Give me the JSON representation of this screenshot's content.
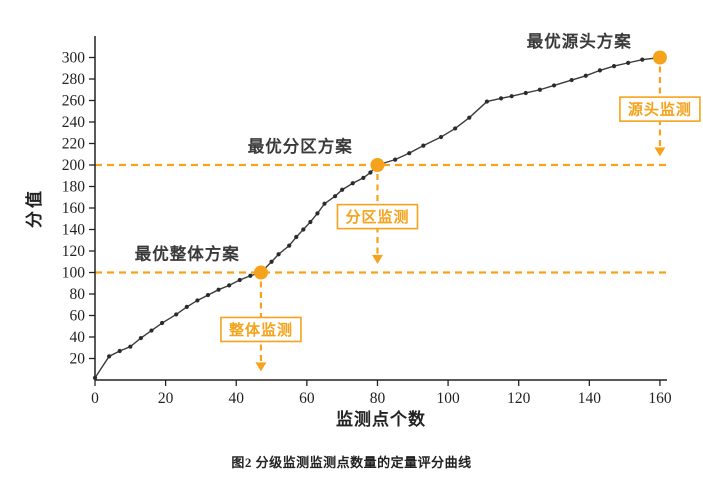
{
  "caption": "图2  分级监测监测点数量的定量评分曲线",
  "chart_data": {
    "type": "line",
    "title": "",
    "xlabel": "监测点个数",
    "ylabel": "分值",
    "xlim": [
      0,
      162
    ],
    "ylim": [
      0,
      320
    ],
    "xticks": [
      0,
      20,
      40,
      60,
      80,
      100,
      120,
      140,
      160
    ],
    "yticks": [
      20,
      40,
      60,
      80,
      100,
      120,
      140,
      160,
      180,
      200,
      220,
      240,
      260,
      280,
      300
    ],
    "grid": false,
    "legend": "none",
    "line_color": "#3b3b3b",
    "dot_color": "#2b2b2b",
    "accent_color": "#F5A31C",
    "axis_color": "#222222",
    "series": [
      {
        "name": "定量评分曲线",
        "points": [
          [
            0,
            2
          ],
          [
            4,
            22
          ],
          [
            7,
            27
          ],
          [
            10,
            31
          ],
          [
            13,
            39
          ],
          [
            16,
            46
          ],
          [
            19,
            53
          ],
          [
            23,
            61
          ],
          [
            26,
            68
          ],
          [
            29,
            74
          ],
          [
            32,
            79
          ],
          [
            35,
            84
          ],
          [
            38,
            88
          ],
          [
            41,
            93
          ],
          [
            44,
            97
          ],
          [
            47,
            100
          ],
          [
            50,
            110
          ],
          [
            52,
            117
          ],
          [
            55,
            125
          ],
          [
            57,
            133
          ],
          [
            59,
            140
          ],
          [
            61,
            147
          ],
          [
            63,
            155
          ],
          [
            65,
            164
          ],
          [
            68,
            171
          ],
          [
            70,
            177
          ],
          [
            73,
            183
          ],
          [
            76,
            188
          ],
          [
            78,
            193
          ],
          [
            80,
            200
          ],
          [
            85,
            205
          ],
          [
            89,
            211
          ],
          [
            93,
            218
          ],
          [
            98,
            226
          ],
          [
            102,
            234
          ],
          [
            106,
            244
          ],
          [
            111,
            259
          ],
          [
            115,
            262
          ],
          [
            118,
            264
          ],
          [
            122,
            267
          ],
          [
            126,
            270
          ],
          [
            130,
            274
          ],
          [
            135,
            279
          ],
          [
            139,
            283
          ],
          [
            143,
            288
          ],
          [
            147,
            292
          ],
          [
            151,
            295
          ],
          [
            155,
            298
          ],
          [
            160,
            300
          ]
        ]
      }
    ],
    "reference_lines": [
      {
        "y": 100
      },
      {
        "y": 200
      }
    ],
    "annotations": [
      {
        "point": [
          47,
          100
        ],
        "scheme_label": "最优整体方案",
        "scheme_label_pos": [
          41,
          112
        ],
        "tag_label": "整体监测",
        "tag_center": [
          47,
          47
        ],
        "arrow_tip_y": 8
      },
      {
        "point": [
          80,
          200
        ],
        "scheme_label": "最优分区方案",
        "scheme_label_pos": [
          73,
          212
        ],
        "tag_label": "分区监测",
        "tag_center": [
          80,
          152
        ],
        "arrow_tip_y": 108
      },
      {
        "point": [
          160,
          300
        ],
        "scheme_label": "最优源头方案",
        "scheme_label_pos": [
          152,
          310
        ],
        "tag_label": "源头监测",
        "tag_center": [
          160,
          252
        ],
        "arrow_tip_y": 208
      }
    ]
  }
}
